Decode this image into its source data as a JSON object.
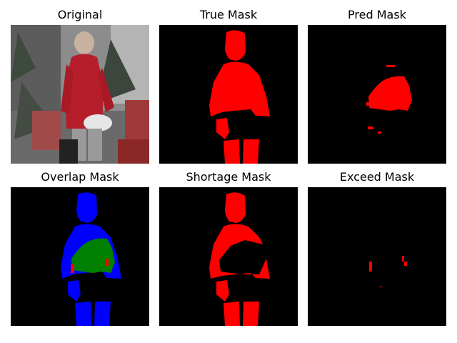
{
  "figure": {
    "panels": [
      {
        "title": "Original"
      },
      {
        "title": "True Mask"
      },
      {
        "title": "Pred Mask"
      },
      {
        "title": "Overlap Mask"
      },
      {
        "title": "Shortage Mask"
      },
      {
        "title": "Exceed Mask"
      }
    ]
  },
  "colors": {
    "background": "#000000",
    "mask": "#ff0000",
    "overlap_true": "#0000ff",
    "overlap_both": "#008000",
    "overlap_pred_only": "#ff0000"
  }
}
